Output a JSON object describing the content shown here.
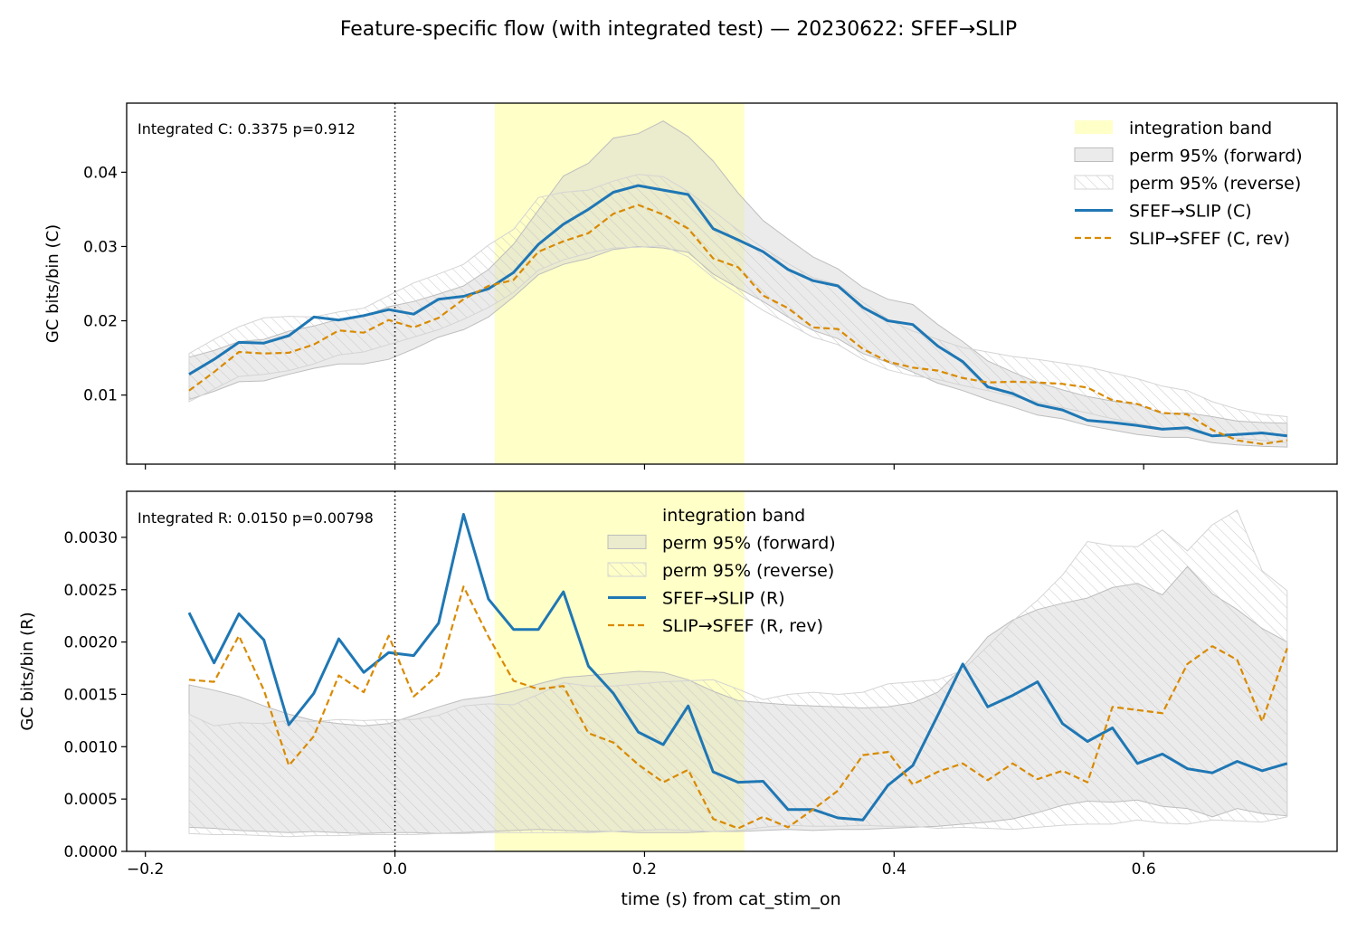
{
  "figure": {
    "title": "Feature-specific flow (with integrated test) — 20230622: SFEF→SLIP",
    "xlabel": "time (s) from cat_stim_on"
  },
  "colors": {
    "forward": "#1f77b4",
    "reverse": "#d98a00",
    "band": "#ffffc8",
    "perm_fill": "#d3d3d3",
    "perm_hatch": "#c8c8c8",
    "zero_line": "#000000"
  },
  "chart_data": [
    {
      "type": "line",
      "panel": "top",
      "ylabel": "GC bits/bin (C)",
      "annotation": "Integrated C: 0.3375  p=0.912",
      "xlim": [
        -0.215,
        0.755
      ],
      "ylim": [
        0.0007,
        0.0493
      ],
      "x_ticks": [
        -0.2,
        0.0,
        0.2,
        0.4,
        0.6
      ],
      "x_tick_labels": [],
      "y_ticks": [
        0.01,
        0.02,
        0.03,
        0.04
      ],
      "y_tick_labels": [
        "0.01",
        "0.02",
        "0.03",
        "0.04"
      ],
      "integration_band": [
        0.08,
        0.28
      ],
      "zero_line_x": 0.0,
      "legend_position": "upper right",
      "legend": [
        "integration band",
        "perm 95% (forward)",
        "perm 95% (reverse)",
        "SFEF→SLIP (C)",
        "SLIP→SFEF (C, rev)"
      ],
      "x": [
        -0.165,
        -0.145,
        -0.125,
        -0.105,
        -0.085,
        -0.065,
        -0.045,
        -0.025,
        -0.005,
        0.015,
        0.035,
        0.055,
        0.075,
        0.095,
        0.115,
        0.135,
        0.155,
        0.175,
        0.195,
        0.215,
        0.235,
        0.255,
        0.275,
        0.295,
        0.315,
        0.335,
        0.355,
        0.375,
        0.395,
        0.415,
        0.435,
        0.455,
        0.475,
        0.495,
        0.515,
        0.535,
        0.555,
        0.575,
        0.595,
        0.615,
        0.635,
        0.655,
        0.675,
        0.695,
        0.715
      ],
      "series": [
        {
          "name": "SFEF→SLIP (C)",
          "style": "solid",
          "values": [
            0.0128,
            0.0148,
            0.0171,
            0.017,
            0.018,
            0.0205,
            0.0201,
            0.0207,
            0.0215,
            0.0209,
            0.0229,
            0.0233,
            0.0243,
            0.0265,
            0.0303,
            0.033,
            0.035,
            0.0373,
            0.0382,
            0.0376,
            0.037,
            0.0324,
            0.0309,
            0.0293,
            0.0269,
            0.0254,
            0.0247,
            0.0218,
            0.02,
            0.0195,
            0.0166,
            0.0145,
            0.0111,
            0.0102,
            0.0087,
            0.008,
            0.0066,
            0.0063,
            0.0059,
            0.0054,
            0.0056,
            0.0045,
            0.0047,
            0.0049,
            0.0045
          ]
        },
        {
          "name": "SLIP→SFEF (C, rev)",
          "style": "dashed",
          "values": [
            0.0106,
            0.0131,
            0.0158,
            0.0156,
            0.0157,
            0.0168,
            0.0187,
            0.0184,
            0.0201,
            0.0191,
            0.0204,
            0.0229,
            0.0247,
            0.0255,
            0.0293,
            0.0307,
            0.0318,
            0.0344,
            0.0356,
            0.0343,
            0.0324,
            0.0284,
            0.0272,
            0.0234,
            0.0217,
            0.0191,
            0.0189,
            0.0162,
            0.0145,
            0.0137,
            0.0133,
            0.0123,
            0.0117,
            0.0118,
            0.0117,
            0.0115,
            0.011,
            0.0093,
            0.0088,
            0.0076,
            0.0074,
            0.0053,
            0.0039,
            0.0034,
            0.0039
          ]
        }
      ],
      "perm_forward": {
        "lower": [
          0.0094,
          0.0105,
          0.0118,
          0.0119,
          0.0128,
          0.0136,
          0.0142,
          0.0142,
          0.0148,
          0.0162,
          0.0178,
          0.0188,
          0.0205,
          0.0232,
          0.0262,
          0.0276,
          0.0284,
          0.0296,
          0.03,
          0.0298,
          0.0292,
          0.0263,
          0.0244,
          0.0226,
          0.0205,
          0.0187,
          0.0176,
          0.0156,
          0.0144,
          0.0131,
          0.0116,
          0.0106,
          0.0094,
          0.0084,
          0.0073,
          0.0068,
          0.0059,
          0.0053,
          0.0047,
          0.0043,
          0.0043,
          0.0036,
          0.0033,
          0.0031,
          0.003
        ],
        "upper": [
          0.0151,
          0.016,
          0.0172,
          0.0175,
          0.0186,
          0.0193,
          0.0202,
          0.0206,
          0.0219,
          0.0226,
          0.0236,
          0.0247,
          0.0269,
          0.0303,
          0.0349,
          0.0395,
          0.0412,
          0.0446,
          0.0452,
          0.0469,
          0.0448,
          0.0415,
          0.0372,
          0.0335,
          0.031,
          0.0286,
          0.027,
          0.0245,
          0.0229,
          0.0222,
          0.0195,
          0.0172,
          0.0146,
          0.0131,
          0.0117,
          0.0107,
          0.0098,
          0.0092,
          0.0087,
          0.0075,
          0.0076,
          0.0071,
          0.0065,
          0.0063,
          0.0062
        ]
      },
      "perm_reverse": {
        "lower": [
          0.0091,
          0.0108,
          0.0125,
          0.0128,
          0.0133,
          0.0142,
          0.0154,
          0.0158,
          0.0168,
          0.0178,
          0.0188,
          0.0202,
          0.0218,
          0.0238,
          0.0268,
          0.0282,
          0.0291,
          0.0298,
          0.0299,
          0.0301,
          0.0286,
          0.0258,
          0.0236,
          0.0214,
          0.0196,
          0.0178,
          0.0168,
          0.0148,
          0.0134,
          0.0126,
          0.0121,
          0.0113,
          0.0106,
          0.0098,
          0.0091,
          0.0083,
          0.0076,
          0.0068,
          0.0062,
          0.0055,
          0.0052,
          0.0046,
          0.0042,
          0.0039,
          0.0036
        ],
        "upper": [
          0.0156,
          0.0175,
          0.0192,
          0.0204,
          0.0206,
          0.0205,
          0.0212,
          0.0217,
          0.0234,
          0.0251,
          0.0263,
          0.0276,
          0.0302,
          0.0323,
          0.0366,
          0.0373,
          0.0376,
          0.0388,
          0.0397,
          0.0394,
          0.0374,
          0.0348,
          0.0322,
          0.0298,
          0.0277,
          0.0258,
          0.0249,
          0.0225,
          0.0202,
          0.0186,
          0.0175,
          0.0164,
          0.0158,
          0.0152,
          0.0148,
          0.0143,
          0.0138,
          0.013,
          0.0122,
          0.0112,
          0.0106,
          0.0091,
          0.0081,
          0.0074,
          0.0071
        ]
      }
    },
    {
      "type": "line",
      "panel": "bottom",
      "ylabel": "GC bits/bin (R)",
      "annotation": "Integrated R: 0.0150  p=0.00798",
      "xlim": [
        -0.215,
        0.755
      ],
      "ylim": [
        0.0,
        0.00344
      ],
      "x_ticks": [
        -0.2,
        0.0,
        0.2,
        0.4,
        0.6
      ],
      "x_tick_labels": [
        "−0.2",
        "0.0",
        "0.2",
        "0.4",
        "0.6"
      ],
      "y_ticks": [
        0.0,
        0.0005,
        0.001,
        0.0015,
        0.002,
        0.0025,
        0.003
      ],
      "y_tick_labels": [
        "0.0000",
        "0.0005",
        "0.0010",
        "0.0015",
        "0.0020",
        "0.0025",
        "0.0030"
      ],
      "integration_band": [
        0.08,
        0.28
      ],
      "zero_line_x": 0.0,
      "legend_position": "upper center",
      "legend": [
        "integration band",
        "perm 95% (forward)",
        "perm 95% (reverse)",
        "SFEF→SLIP (R)",
        "SLIP→SFEF (R, rev)"
      ],
      "x": [
        -0.165,
        -0.145,
        -0.125,
        -0.105,
        -0.085,
        -0.065,
        -0.045,
        -0.025,
        -0.005,
        0.015,
        0.035,
        0.055,
        0.075,
        0.095,
        0.115,
        0.135,
        0.155,
        0.175,
        0.195,
        0.215,
        0.235,
        0.255,
        0.275,
        0.295,
        0.315,
        0.335,
        0.355,
        0.375,
        0.395,
        0.415,
        0.435,
        0.455,
        0.475,
        0.495,
        0.515,
        0.535,
        0.555,
        0.575,
        0.595,
        0.615,
        0.635,
        0.655,
        0.675,
        0.695,
        0.715
      ],
      "series": [
        {
          "name": "SFEF→SLIP (R)",
          "style": "solid",
          "values": [
            0.00228,
            0.0018,
            0.00227,
            0.00202,
            0.00121,
            0.00151,
            0.00203,
            0.00171,
            0.0019,
            0.00187,
            0.00218,
            0.00322,
            0.00241,
            0.00212,
            0.00212,
            0.00248,
            0.00177,
            0.00151,
            0.00114,
            0.00102,
            0.00139,
            0.00076,
            0.00066,
            0.00067,
            0.0004,
            0.0004,
            0.00032,
            0.0003,
            0.00063,
            0.00082,
            0.0013,
            0.00179,
            0.00138,
            0.00149,
            0.00162,
            0.00122,
            0.00105,
            0.00118,
            0.00084,
            0.00093,
            0.00079,
            0.00075,
            0.00086,
            0.00077,
            0.00084
          ]
        },
        {
          "name": "SLIP→SFEF (R, rev)",
          "style": "dashed",
          "values": [
            0.00164,
            0.00162,
            0.00206,
            0.00154,
            0.00082,
            0.0011,
            0.00168,
            0.00152,
            0.00206,
            0.00148,
            0.00169,
            0.00253,
            0.00205,
            0.00163,
            0.00155,
            0.00158,
            0.00113,
            0.00104,
            0.00083,
            0.00066,
            0.00078,
            0.00031,
            0.00022,
            0.00033,
            0.00023,
            0.0004,
            0.00058,
            0.00092,
            0.00095,
            0.00064,
            0.00076,
            0.00084,
            0.00068,
            0.00084,
            0.00069,
            0.00077,
            0.00066,
            0.00138,
            0.00135,
            0.00132,
            0.00179,
            0.00196,
            0.00183,
            0.00124,
            0.00194
          ]
        }
      ],
      "perm_forward": {
        "lower": [
          0.00023,
          0.00022,
          0.0002,
          0.00019,
          0.00018,
          0.00019,
          0.00018,
          0.00017,
          0.00018,
          0.00018,
          0.00017,
          0.00018,
          0.00019,
          0.0002,
          0.00021,
          0.0002,
          0.00019,
          0.00019,
          0.00018,
          0.00018,
          0.00018,
          0.00019,
          0.00019,
          0.0002,
          0.00021,
          0.0002,
          0.00021,
          0.00021,
          0.00022,
          0.00023,
          0.00024,
          0.00026,
          0.00028,
          0.00031,
          0.00037,
          0.00044,
          0.00048,
          0.00047,
          0.00049,
          0.00043,
          0.00041,
          0.00033,
          0.00041,
          0.00036,
          0.00034
        ],
        "upper": [
          0.00159,
          0.00154,
          0.00148,
          0.00139,
          0.00131,
          0.00125,
          0.00122,
          0.0012,
          0.00122,
          0.0013,
          0.00138,
          0.00145,
          0.00148,
          0.00153,
          0.0016,
          0.00166,
          0.00168,
          0.0017,
          0.00172,
          0.00171,
          0.00164,
          0.00153,
          0.00144,
          0.00142,
          0.0014,
          0.00139,
          0.00138,
          0.00137,
          0.00138,
          0.00142,
          0.00152,
          0.00176,
          0.00205,
          0.00221,
          0.00231,
          0.00237,
          0.00242,
          0.00252,
          0.00256,
          0.00245,
          0.00272,
          0.00246,
          0.00231,
          0.00213,
          0.002
        ]
      },
      "perm_reverse": {
        "lower": [
          0.00017,
          0.00016,
          0.00016,
          0.00015,
          0.00014,
          0.00015,
          0.00015,
          0.00016,
          0.00016,
          0.00016,
          0.00017,
          0.00017,
          0.00018,
          0.00018,
          0.00018,
          0.00018,
          0.00018,
          0.00019,
          0.0002,
          0.00021,
          0.0002,
          0.00019,
          0.0002,
          0.00023,
          0.00025,
          0.00024,
          0.00024,
          0.00025,
          0.00024,
          0.00024,
          0.00022,
          0.00023,
          0.00022,
          0.00021,
          0.00023,
          0.00025,
          0.00026,
          0.00026,
          0.0003,
          0.00027,
          0.00026,
          0.0003,
          0.00029,
          0.00028,
          0.00033
        ],
        "upper": [
          0.00131,
          0.0012,
          0.00123,
          0.00122,
          0.00125,
          0.00124,
          0.00126,
          0.00125,
          0.00126,
          0.00126,
          0.0013,
          0.00139,
          0.00141,
          0.0014,
          0.0015,
          0.00161,
          0.00158,
          0.00158,
          0.0016,
          0.00162,
          0.00163,
          0.00164,
          0.00155,
          0.00145,
          0.0015,
          0.00152,
          0.0015,
          0.00152,
          0.0016,
          0.00162,
          0.00164,
          0.00173,
          0.00196,
          0.0022,
          0.0024,
          0.00264,
          0.00296,
          0.00292,
          0.00291,
          0.00307,
          0.00287,
          0.00312,
          0.00326,
          0.00268,
          0.00249
        ]
      }
    }
  ]
}
